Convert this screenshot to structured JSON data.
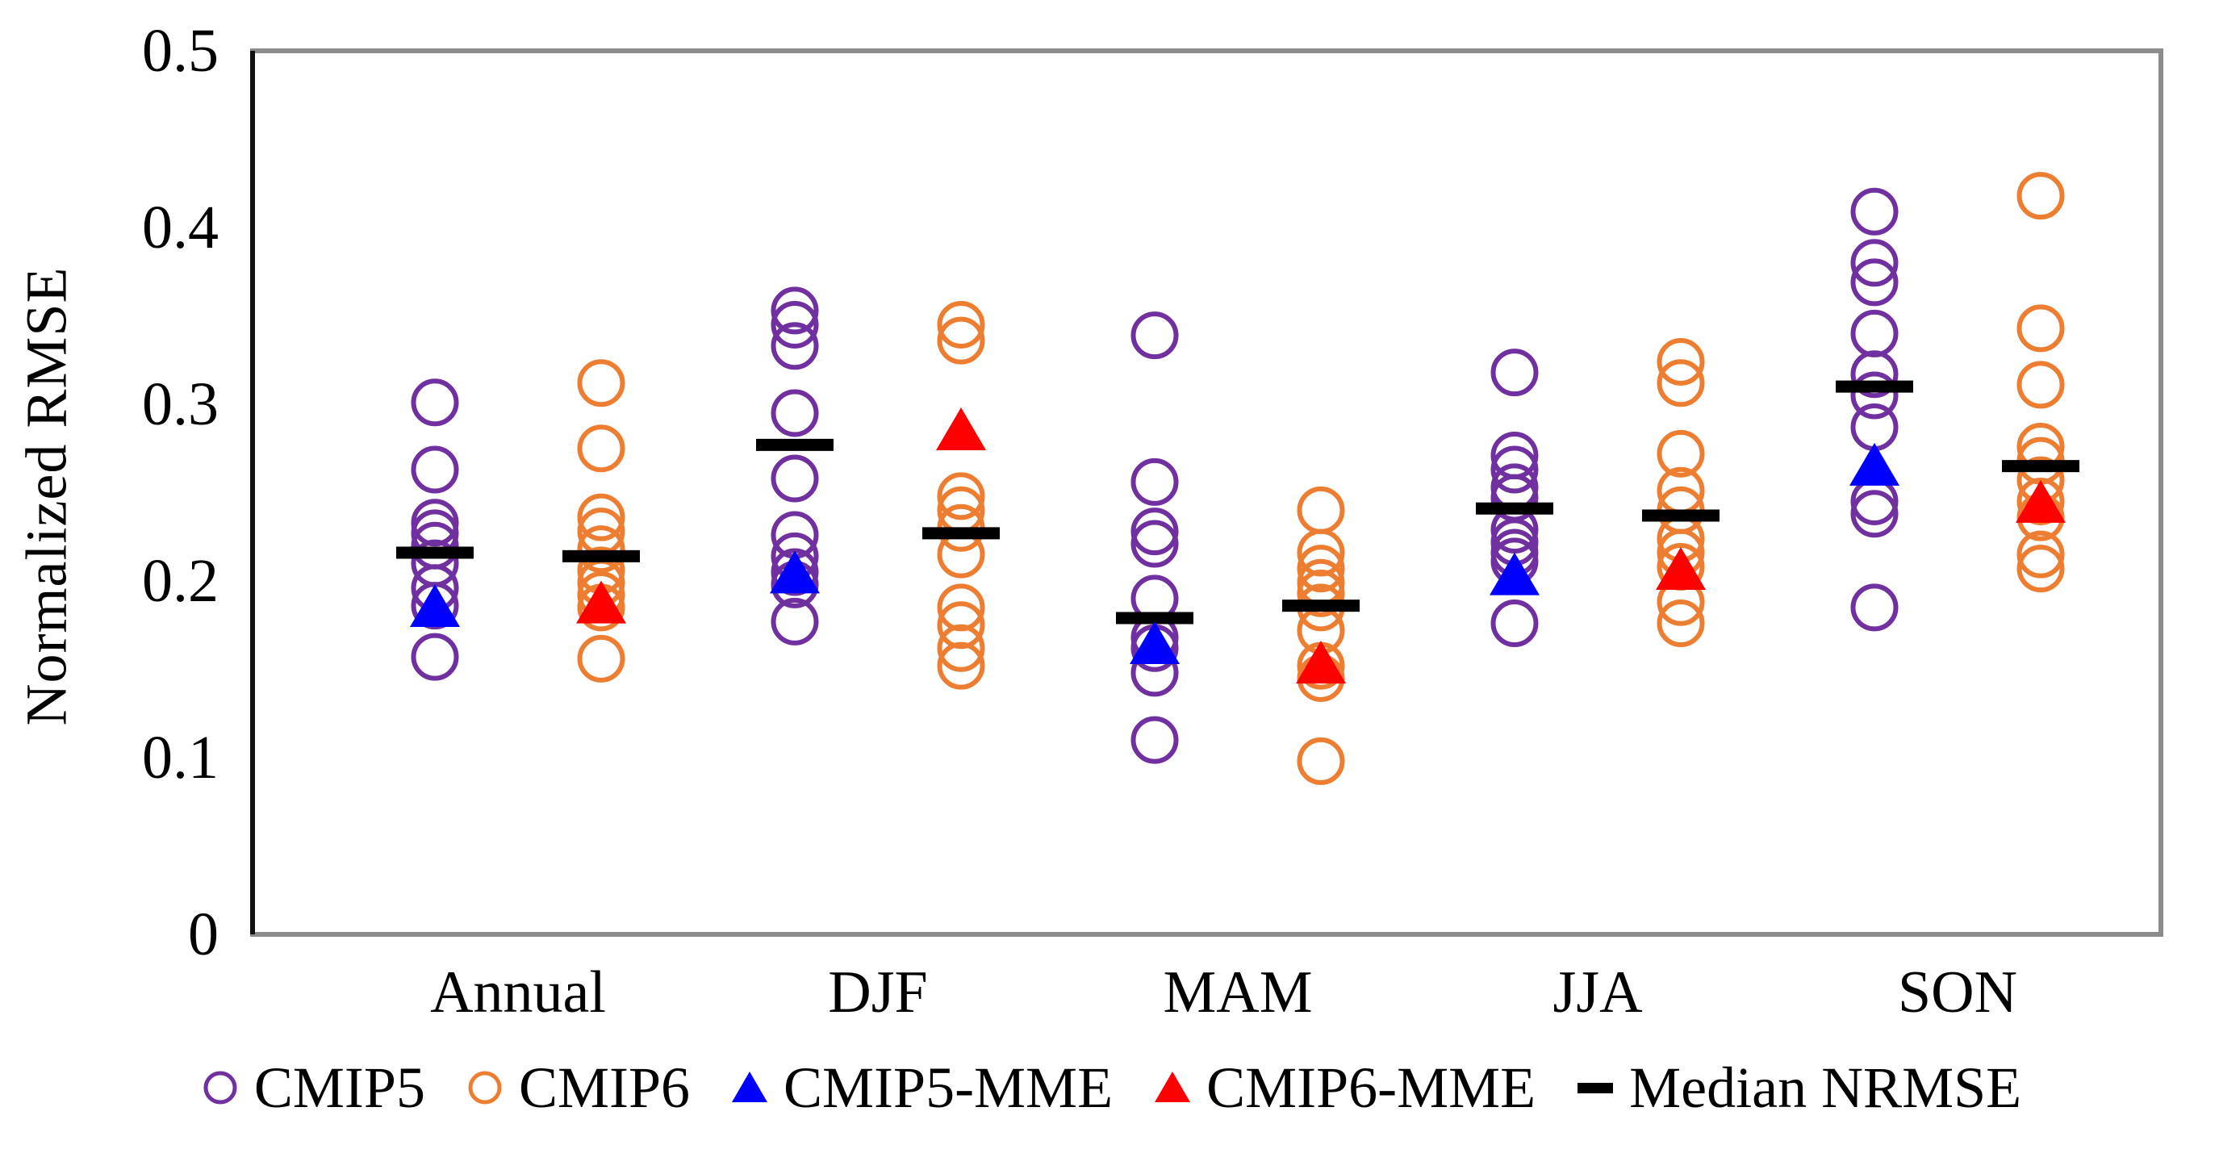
{
  "chart_data": {
    "type": "scatter",
    "title": "",
    "xlabel": "",
    "ylabel": "Normalized RMSE",
    "ylim": [
      0,
      0.5
    ],
    "ytick_labels": [
      "0",
      "0.1",
      "0.2",
      "0.3",
      "0.4",
      "0.5"
    ],
    "ytick_values": [
      0,
      0.1,
      0.2,
      0.3,
      0.4,
      0.5
    ],
    "grid": "off",
    "legend_position": "bottom",
    "categories": [
      "Annual",
      "DJF",
      "MAM",
      "JJA",
      "SON"
    ],
    "series": [
      {
        "name": "CMIP5",
        "marker": "open-circle",
        "color": "#7030A0",
        "column": "cmip5",
        "values": [
          [
            0.301,
            0.263,
            0.233,
            0.227,
            0.22,
            0.21,
            0.196,
            0.186,
            0.157
          ],
          [
            0.353,
            0.345,
            0.333,
            0.295,
            0.258,
            0.226,
            0.214,
            0.205,
            0.198,
            0.177
          ],
          [
            0.339,
            0.256,
            0.228,
            0.221,
            0.19,
            0.168,
            0.162,
            0.148,
            0.11
          ],
          [
            0.318,
            0.271,
            0.263,
            0.253,
            0.247,
            0.229,
            0.222,
            0.216,
            0.211,
            0.176
          ],
          [
            0.409,
            0.38,
            0.369,
            0.34,
            0.317,
            0.305,
            0.287,
            0.245,
            0.238,
            0.185
          ]
        ]
      },
      {
        "name": "CMIP6",
        "marker": "open-circle",
        "color": "#ED7D31",
        "column": "cmip6",
        "values": [
          [
            0.312,
            0.275,
            0.236,
            0.228,
            0.218,
            0.206,
            0.199,
            0.192,
            0.185,
            0.156
          ],
          [
            0.345,
            0.336,
            0.248,
            0.24,
            0.23,
            0.215,
            0.185,
            0.175,
            0.162,
            0.152
          ],
          [
            0.24,
            0.216,
            0.207,
            0.199,
            0.193,
            0.185,
            0.172,
            0.152,
            0.145,
            0.098
          ],
          [
            0.324,
            0.312,
            0.272,
            0.251,
            0.24,
            0.224,
            0.216,
            0.208,
            0.188,
            0.176
          ],
          [
            0.418,
            0.343,
            0.311,
            0.276,
            0.268,
            0.257,
            0.245,
            0.236,
            0.215,
            0.207
          ]
        ]
      },
      {
        "name": "CMIP5-MME",
        "marker": "triangle",
        "color": "#0000FF",
        "column": "cmip5",
        "values": [
          0.184,
          0.203,
          0.163,
          0.202,
          0.264
        ]
      },
      {
        "name": "CMIP6-MME",
        "marker": "triangle",
        "color": "#FF0000",
        "column": "cmip6",
        "values": [
          0.186,
          0.284,
          0.152,
          0.205,
          0.243
        ]
      },
      {
        "name": "Median NRMSE",
        "marker": "dash",
        "color": "#000000",
        "column": "both",
        "values": {
          "cmip5": [
            0.216,
            0.277,
            0.179,
            0.241,
            0.31
          ],
          "cmip6": [
            0.214,
            0.227,
            0.186,
            0.237,
            0.265
          ]
        }
      }
    ]
  }
}
